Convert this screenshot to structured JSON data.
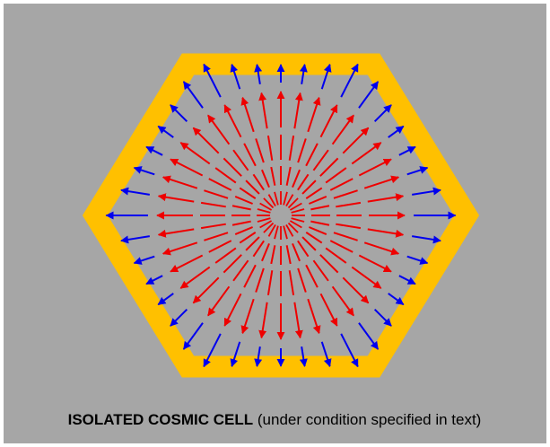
{
  "caption": {
    "bold": "ISOLATED COSMIC CELL",
    "normal": "(under condition specified in text)"
  }
}
